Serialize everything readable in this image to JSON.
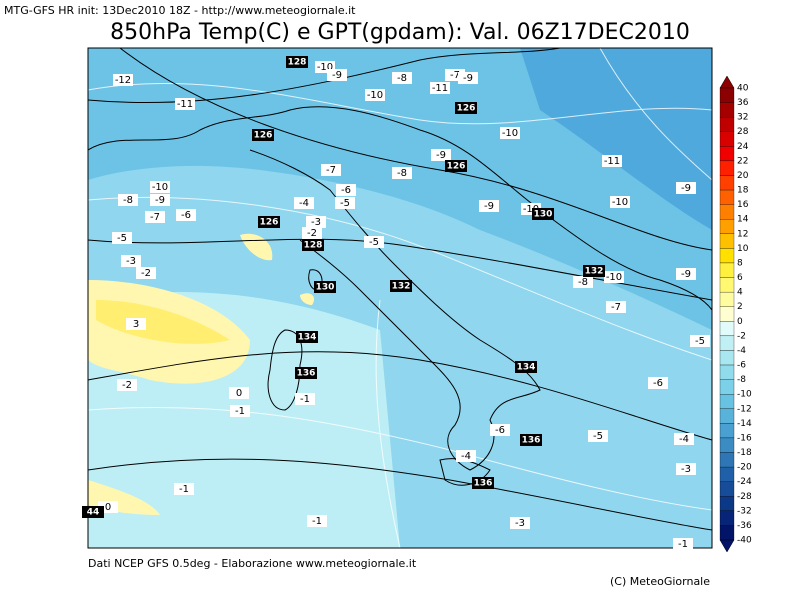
{
  "header": {
    "info": "MTG-GFS HR init: 13Dec2010 18Z - http://www.meteogiornale.it",
    "title": "850hPa Temp(C) e GPT(gpdam): Val. 06Z17DEC2010"
  },
  "map": {
    "temperature_labels": [
      -12,
      -11,
      -10,
      -9,
      -8,
      -10,
      -11,
      -7,
      -9,
      -10,
      -9,
      -8,
      -7,
      -6,
      -5,
      -10,
      -8,
      -9,
      -7,
      -6,
      -5,
      -4,
      -3,
      -2,
      -3,
      -2,
      -5,
      -9,
      -10,
      -10,
      -11,
      -9,
      -10,
      -8,
      -9,
      -7,
      -5,
      -6,
      3,
      -2,
      0,
      -1,
      -1,
      -6,
      -5,
      -4,
      -4,
      -3,
      -1,
      0,
      -1,
      -3,
      -1
    ],
    "height_labels": [
      128,
      126,
      126,
      126,
      130,
      126,
      128,
      130,
      132,
      132,
      134,
      136,
      134,
      136,
      136,
      44
    ]
  },
  "colorbar": {
    "labels": [
      40,
      36,
      32,
      28,
      24,
      22,
      20,
      18,
      16,
      14,
      12,
      10,
      8,
      6,
      4,
      2,
      0,
      -2,
      -4,
      -6,
      -8,
      -10,
      -12,
      -14,
      -16,
      -18,
      -20,
      -24,
      -28,
      -32,
      -36,
      -40
    ],
    "colors": [
      "#8b0000",
      "#a50000",
      "#c00000",
      "#d90000",
      "#f00000",
      "#ff2000",
      "#ff4000",
      "#ff6000",
      "#ff8000",
      "#ffa000",
      "#ffc000",
      "#ffe000",
      "#fff040",
      "#fff870",
      "#fffca0",
      "#fffed0",
      "#e0fbfa",
      "#c0f0f4",
      "#a8e6f0",
      "#90dcec",
      "#7cd0e8",
      "#68c2e2",
      "#58b2da",
      "#4aa0d0",
      "#3c8cc4",
      "#2e76b6",
      "#2060a8",
      "#164c98",
      "#0c3888",
      "#062478",
      "#021468"
    ]
  },
  "footer": {
    "source": "Dati NCEP GFS 0.5deg - Elaborazione www.meteogiornale.it",
    "copyright": "(C) MeteoGiornale"
  }
}
